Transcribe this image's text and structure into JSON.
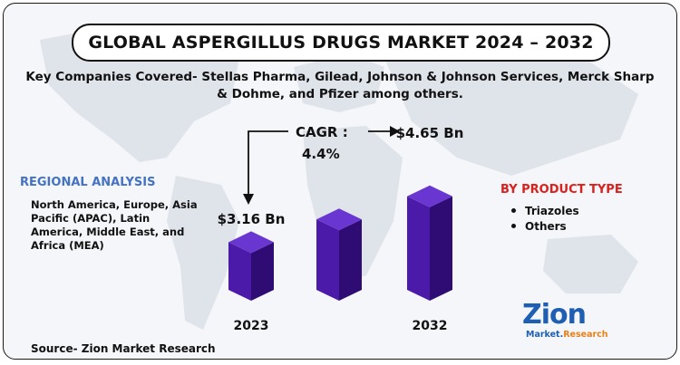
{
  "title": "GLOBAL ASPERGILLUS DRUGS MARKET 2024 – 2032",
  "key_companies": "Key Companies Covered- Stellas Pharma, Gilead, Johnson & Johnson Services, Merck Sharp & Dohme, and Pfizer among others.",
  "regional": {
    "heading": "REGIONAL ANALYSIS",
    "text": "North America, Europe, Asia Pacific (APAC), Latin America, Middle East, and Africa (MEA)"
  },
  "product_type": {
    "heading": "BY PRODUCT TYPE",
    "items": [
      "Triazoles",
      "Others"
    ]
  },
  "cagr": {
    "label": "CAGR :",
    "value": "4.4%"
  },
  "source": "Source- Zion Market Research",
  "logo": {
    "main": "Zion",
    "sub_a": "Market.",
    "sub_b": "Research"
  },
  "colors": {
    "bar_front": "#4b1aa8",
    "bar_side": "#2e0c74",
    "bar_top": "#6a36d1",
    "regional_heading": "#4472c4",
    "product_heading": "#d9211e",
    "logo": "#1f5fb3"
  },
  "chart_data": {
    "type": "bar",
    "categories": [
      "2023",
      "",
      "2032"
    ],
    "values": [
      3.16,
      3.9,
      4.65
    ],
    "value_labels": [
      "$3.16 Bn",
      "",
      "$4.65 Bn"
    ],
    "unit": "USD Bn"
  }
}
